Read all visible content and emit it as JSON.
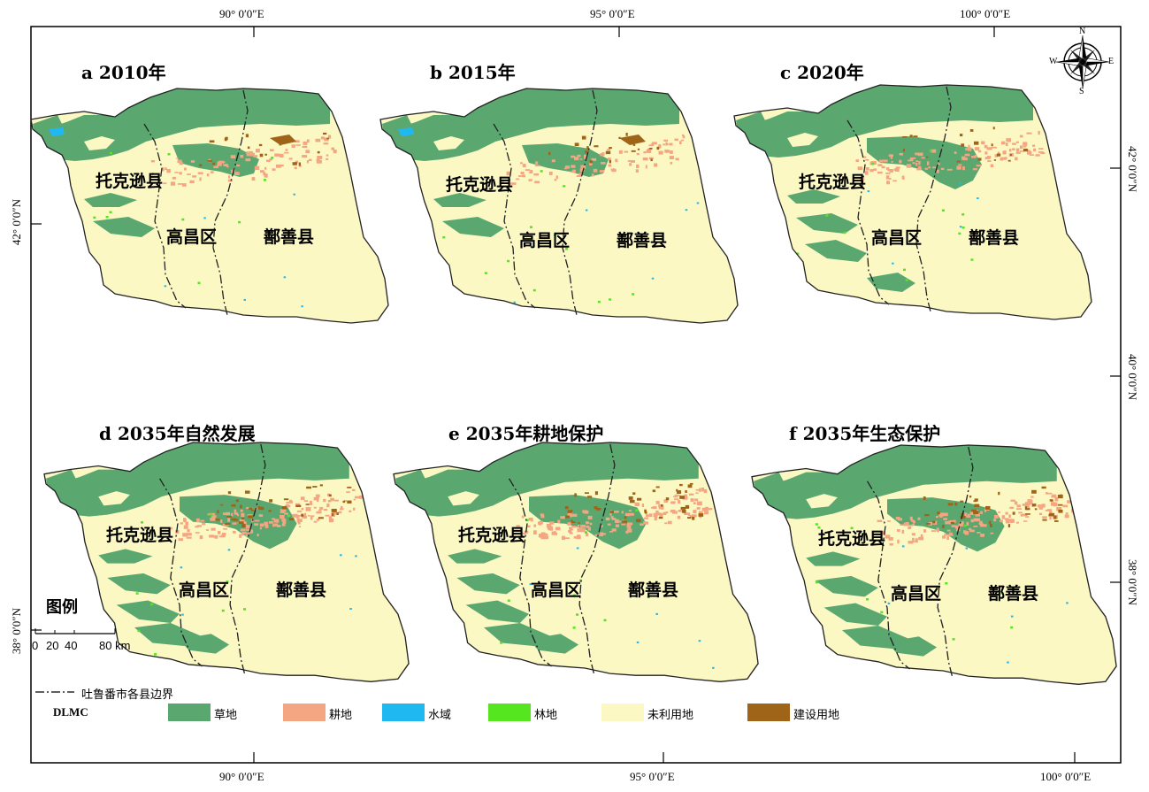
{
  "coordinates": {
    "top": [
      "90° 0′0″E",
      "95° 0′0″E",
      "100° 0′0″E"
    ],
    "bottom": [
      "90° 0′0″E",
      "95° 0′0″E",
      "100° 0′0″E"
    ],
    "left": [
      "42° 0′0″N",
      "38° 0′0″N"
    ],
    "right": [
      "42° 0′0″N",
      "40° 0′0″N",
      "38° 0′0″N"
    ]
  },
  "panels": [
    {
      "title": "a  2010年",
      "counties": [
        "托克逊县",
        "高昌区",
        "鄯善县"
      ]
    },
    {
      "title": "b  2015年",
      "counties": [
        "托克逊县",
        "高昌区",
        "鄯善县"
      ]
    },
    {
      "title": "c  2020年",
      "counties": [
        "托克逊县",
        "高昌区",
        "鄯善县"
      ]
    },
    {
      "title": "d  2035年自然发展",
      "counties": [
        "托克逊县",
        "高昌区",
        "鄯善县"
      ]
    },
    {
      "title": "e  2035年耕地保护",
      "counties": [
        "托克逊县",
        "高昌区",
        "鄯善县"
      ]
    },
    {
      "title": "f  2035年生态保护",
      "counties": [
        "托克逊县",
        "高昌区",
        "鄯善县"
      ]
    }
  ],
  "compass": {
    "n": "N",
    "s": "S",
    "e": "E",
    "w": "W"
  },
  "legend": {
    "title": "图例",
    "scale_labels": [
      "0",
      "20",
      "40",
      "80 km"
    ],
    "boundary_label": "吐鲁番市各县边界",
    "dlmc_label": "DLMC",
    "classes": [
      {
        "label": "草地",
        "color": "#5aa870"
      },
      {
        "label": "耕地",
        "color": "#f4a582"
      },
      {
        "label": "水域",
        "color": "#20b8f0"
      },
      {
        "label": "林地",
        "color": "#55e620"
      },
      {
        "label": "未利用地",
        "color": "#fbf8c4"
      },
      {
        "label": "建设用地",
        "color": "#a06418"
      }
    ]
  }
}
